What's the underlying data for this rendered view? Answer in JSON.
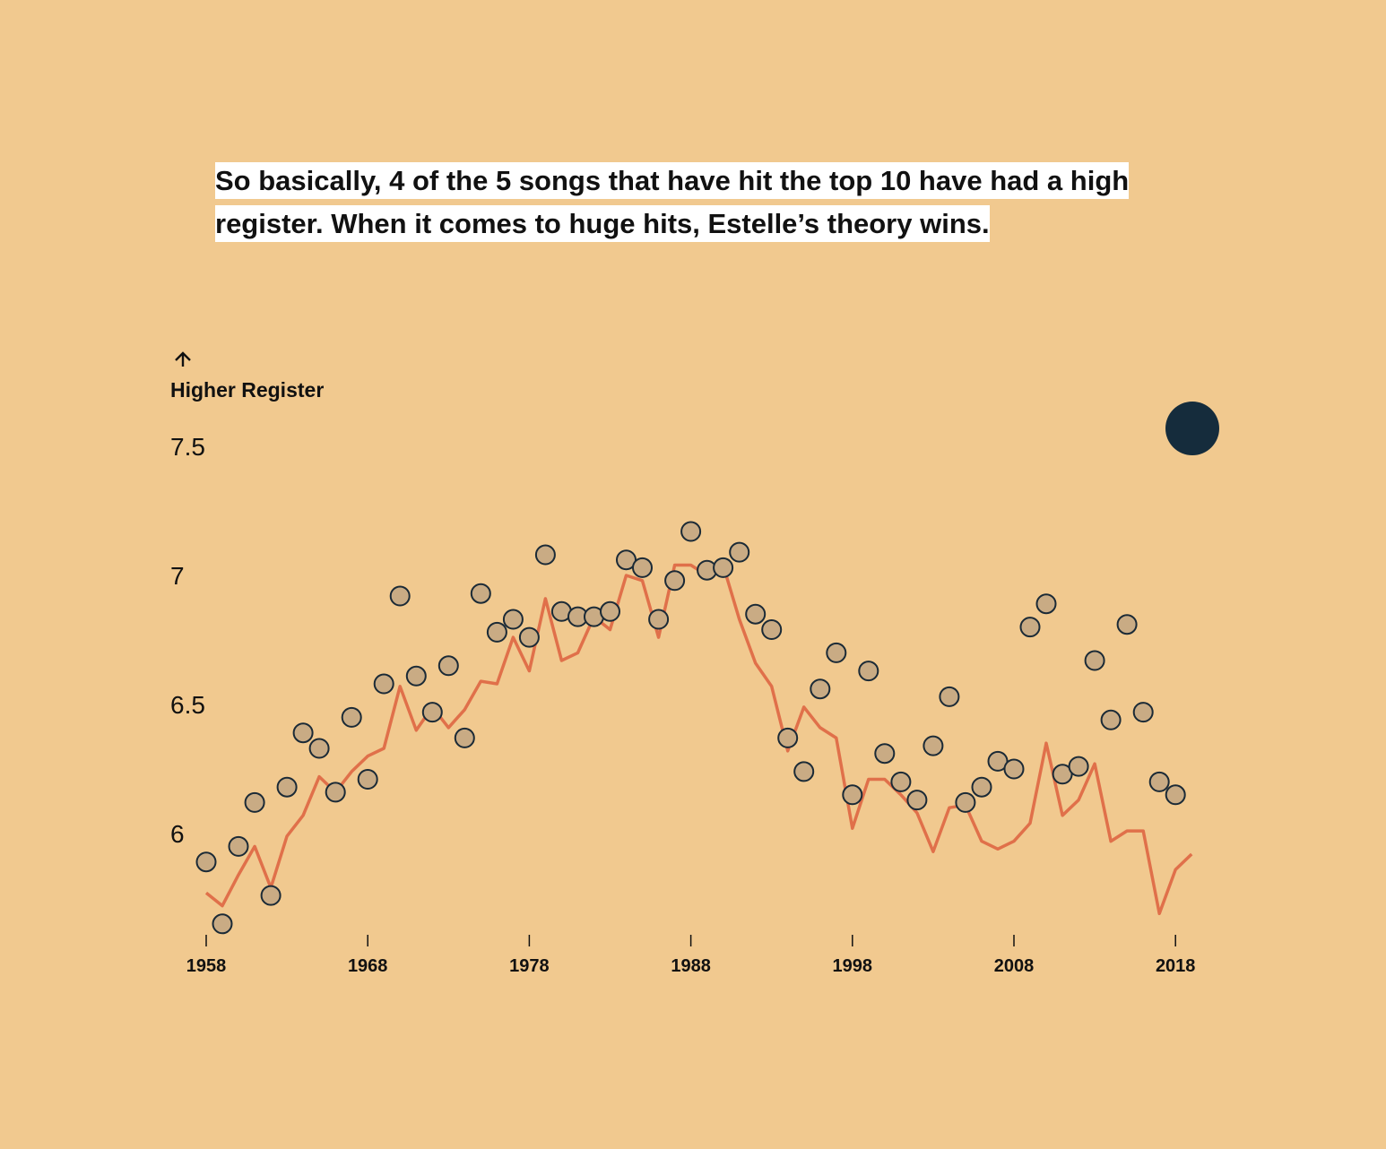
{
  "headline": "So basically, 4 of the 5 songs that have hit the top 10 have had a high register. When it comes to huge hits, Estelle’s theory wins.",
  "colors": {
    "background": "#f1c98f",
    "line": "#e0704a",
    "dot_fill": "#c9ab84",
    "dot_stroke": "#1b2a36",
    "marker": "#152c3c"
  },
  "chart_data": {
    "type": "scatter",
    "ylabel": "Higher Register",
    "xticks": [
      1958,
      1968,
      1978,
      1988,
      1998,
      2008,
      2018
    ],
    "yticks": [
      6,
      6.5,
      7,
      7.5
    ],
    "ytick_labels": [
      "6",
      "6.5",
      "7",
      "7.5"
    ],
    "xlim": [
      1958,
      2019
    ],
    "ylim": [
      5.6,
      7.6
    ],
    "grid": false,
    "series": [
      {
        "type": "scatter",
        "x": [
          1958,
          1959,
          1960,
          1961,
          1962,
          1963,
          1964,
          1965,
          1966,
          1967,
          1968,
          1969,
          1970,
          1971,
          1972,
          1973,
          1974,
          1975,
          1976,
          1977,
          1978,
          1979,
          1980,
          1981,
          1982,
          1983,
          1984,
          1985,
          1986,
          1987,
          1988,
          1989,
          1990,
          1991,
          1992,
          1993,
          1994,
          1995,
          1996,
          1997,
          1998,
          1999,
          2000,
          2001,
          2002,
          2003,
          2004,
          2005,
          2006,
          2007,
          2008,
          2009,
          2010,
          2011,
          2012,
          2013,
          2014,
          2015,
          2016,
          2017,
          2018
        ],
        "y": [
          5.89,
          5.65,
          5.95,
          6.12,
          5.76,
          6.18,
          6.39,
          6.33,
          6.16,
          6.45,
          6.21,
          6.58,
          6.92,
          6.61,
          6.47,
          6.65,
          6.37,
          6.93,
          6.78,
          6.83,
          6.76,
          7.08,
          6.86,
          6.84,
          6.84,
          6.86,
          7.06,
          7.03,
          6.83,
          6.98,
          7.17,
          7.02,
          7.03,
          7.09,
          6.85,
          6.79,
          6.37,
          6.24,
          6.56,
          6.7,
          6.15,
          6.63,
          6.31,
          6.2,
          6.13,
          6.34,
          6.53,
          6.12,
          6.18,
          6.28,
          6.25,
          6.8,
          6.89,
          6.23,
          6.26,
          6.67,
          6.44,
          6.81,
          6.47,
          6.2,
          6.15
        ]
      },
      {
        "type": "line",
        "x": [
          1958,
          1959,
          1960,
          1961,
          1962,
          1963,
          1964,
          1965,
          1966,
          1967,
          1968,
          1969,
          1970,
          1971,
          1972,
          1973,
          1974,
          1975,
          1976,
          1977,
          1978,
          1979,
          1980,
          1981,
          1982,
          1983,
          1984,
          1985,
          1986,
          1987,
          1988,
          1989,
          1990,
          1991,
          1992,
          1993,
          1994,
          1995,
          1996,
          1997,
          1998,
          1999,
          2000,
          2001,
          2002,
          2003,
          2004,
          2005,
          2006,
          2007,
          2008,
          2009,
          2010,
          2011,
          2012,
          2013,
          2014,
          2015,
          2016,
          2017,
          2018,
          2019
        ],
        "y": [
          5.77,
          5.72,
          5.84,
          5.95,
          5.79,
          5.99,
          6.07,
          6.22,
          6.16,
          6.24,
          6.3,
          6.33,
          6.57,
          6.4,
          6.49,
          6.41,
          6.48,
          6.59,
          6.58,
          6.76,
          6.63,
          6.91,
          6.67,
          6.7,
          6.84,
          6.79,
          7.0,
          6.98,
          6.76,
          7.04,
          7.04,
          7.0,
          7.04,
          6.83,
          6.66,
          6.57,
          6.32,
          6.49,
          6.41,
          6.37,
          6.02,
          6.21,
          6.21,
          6.15,
          6.08,
          5.93,
          6.1,
          6.11,
          5.97,
          5.94,
          5.97,
          6.04,
          6.35,
          6.07,
          6.13,
          6.27,
          5.97,
          6.01,
          6.01,
          5.69,
          5.86,
          5.92
        ]
      }
    ]
  }
}
